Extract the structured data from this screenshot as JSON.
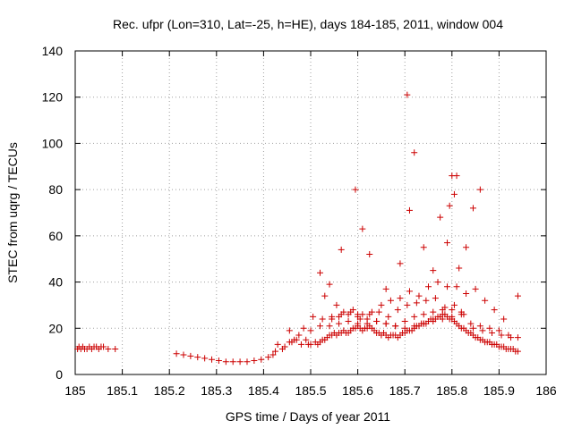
{
  "chart_data": {
    "type": "scatter",
    "title": "Rec. ufpr (Lon=310, Lat=-25, h=HE), days 184-185, 2011, window 004",
    "xlabel": "GPS time / Days of year 2011",
    "ylabel": "STEC from uqrg / TECUs",
    "xlim": [
      185,
      186
    ],
    "ylim": [
      0,
      140
    ],
    "xticks": [
      185,
      185.1,
      185.2,
      185.3,
      185.4,
      185.5,
      185.6,
      185.7,
      185.8,
      185.9,
      186
    ],
    "xtick_labels": [
      "185",
      "185.1",
      "185.2",
      "185.3",
      "185.4",
      "185.5",
      "185.6",
      "185.7",
      "185.8",
      "185.9",
      "186"
    ],
    "yticks": [
      0,
      20,
      40,
      60,
      80,
      100,
      120,
      140
    ],
    "ytick_labels": [
      "0",
      "20",
      "40",
      "60",
      "80",
      "100",
      "120",
      "140"
    ],
    "grid": true,
    "marker": "+",
    "color": "#cc0000",
    "series": [
      {
        "name": "STEC",
        "x": [
          185.005,
          185.008,
          185.012,
          185.016,
          185.02,
          185.025,
          185.03,
          185.035,
          185.04,
          185.045,
          185.05,
          185.055,
          185.06,
          185.07,
          185.085,
          185.215,
          185.23,
          185.245,
          185.26,
          185.275,
          185.29,
          185.305,
          185.32,
          185.335,
          185.35,
          185.365,
          185.38,
          185.395,
          185.41,
          185.42,
          185.425,
          185.43,
          185.44,
          185.445,
          185.455,
          185.46,
          185.47,
          185.48,
          185.49,
          185.495,
          185.5,
          185.51,
          185.515,
          185.52,
          185.525,
          185.53,
          185.535,
          185.54,
          185.545,
          185.55,
          185.555,
          185.56,
          185.565,
          185.57,
          185.575,
          185.58,
          185.585,
          185.59,
          185.595,
          185.6,
          185.605,
          185.61,
          185.615,
          185.62,
          185.625,
          185.63,
          185.635,
          185.64,
          185.645,
          185.65,
          185.655,
          185.66,
          185.665,
          185.67,
          185.675,
          185.68,
          185.685,
          185.69,
          185.695,
          185.7,
          185.705,
          185.71,
          185.715,
          185.72,
          185.725,
          185.73,
          185.735,
          185.74,
          185.745,
          185.75,
          185.755,
          185.76,
          185.765,
          185.77,
          185.775,
          185.78,
          185.785,
          185.79,
          185.795,
          185.8,
          185.805,
          185.81,
          185.815,
          185.82,
          185.825,
          185.83,
          185.835,
          185.84,
          185.845,
          185.85,
          185.855,
          185.86,
          185.865,
          185.87,
          185.875,
          185.88,
          185.885,
          185.89,
          185.895,
          185.9,
          185.905,
          185.91,
          185.915,
          185.92,
          185.925,
          185.93,
          185.935,
          185.94,
          185.455,
          185.475,
          185.5,
          185.52,
          185.54,
          185.56,
          185.58,
          185.6,
          185.62,
          185.64,
          185.66,
          185.68,
          185.7,
          185.72,
          185.74,
          185.76,
          185.78,
          185.8,
          185.82,
          185.84,
          185.86,
          185.88,
          185.9,
          185.92,
          185.94,
          185.465,
          185.485,
          185.505,
          185.525,
          185.545,
          185.565,
          185.585,
          185.605,
          185.625,
          185.645,
          185.665,
          185.685,
          185.705,
          185.725,
          185.745,
          185.765,
          185.785,
          185.805,
          185.825,
          185.845,
          185.865,
          185.885,
          185.905,
          185.925,
          185.53,
          185.545,
          185.555,
          185.57,
          185.59,
          185.61,
          185.63,
          185.65,
          185.67,
          185.69,
          185.71,
          185.73,
          185.75,
          185.77,
          185.79,
          185.81,
          185.83,
          185.85,
          185.87,
          185.89,
          185.91,
          185.52,
          185.54,
          185.565,
          185.595,
          185.6,
          185.61,
          185.625,
          185.66,
          185.69,
          185.705,
          185.71,
          185.72,
          185.74,
          185.76,
          185.775,
          185.79,
          185.795,
          185.8,
          185.805,
          185.81,
          185.815,
          185.83,
          185.845,
          185.86,
          185.94,
          185.56,
          185.58,
          185.6,
          185.62,
          185.64,
          185.66,
          185.68,
          185.7,
          185.72,
          185.74,
          185.76,
          185.78,
          185.8,
          185.82
        ],
        "y": [
          11,
          12,
          11,
          12,
          11,
          11,
          12,
          11,
          12,
          12,
          11,
          12,
          12,
          11,
          11,
          9,
          8.5,
          8,
          7.5,
          7,
          6.5,
          6,
          5.5,
          5.5,
          5.5,
          5.5,
          6,
          6.5,
          7.5,
          8.5,
          10,
          13,
          11,
          12,
          14,
          14,
          15,
          13,
          15,
          13,
          13,
          14,
          13,
          14,
          15,
          15,
          16,
          17,
          17,
          18,
          17,
          18,
          18,
          19,
          18,
          18,
          19,
          20,
          20,
          21,
          20,
          19,
          20,
          20,
          21,
          20,
          19,
          18,
          18,
          17,
          18,
          17,
          16,
          17,
          17,
          17,
          16,
          17,
          18,
          18,
          19,
          19,
          19,
          20,
          21,
          21,
          22,
          22,
          22,
          23,
          24,
          24,
          24,
          25,
          25,
          26,
          26,
          25,
          24,
          24,
          23,
          22,
          21,
          20,
          20,
          19,
          18,
          18,
          17,
          16,
          16,
          15,
          15,
          14,
          14,
          14,
          13,
          13,
          13,
          12,
          12,
          12,
          11,
          11,
          11,
          11,
          10,
          10,
          19,
          17,
          19,
          21,
          21,
          22,
          23,
          22,
          22,
          23,
          22,
          21,
          23,
          25,
          26,
          27,
          28,
          28,
          27,
          22,
          21,
          20,
          19,
          17,
          16,
          15,
          20,
          25,
          24,
          25,
          26,
          27,
          24,
          26,
          27,
          25,
          28,
          30,
          31,
          32,
          33,
          29,
          30,
          26,
          20,
          19,
          18,
          17,
          16,
          34,
          24,
          30,
          27,
          28,
          26,
          27,
          30,
          32,
          33,
          36,
          34,
          38,
          40,
          38,
          38,
          35,
          37,
          32,
          28,
          24,
          44,
          39,
          54,
          80,
          26,
          63,
          52,
          37,
          48,
          121,
          71,
          96,
          55,
          45,
          68,
          57,
          73,
          86,
          78,
          86,
          46,
          55,
          72,
          80,
          34,
          25,
          26,
          25,
          24,
          23,
          22,
          21,
          20,
          21,
          22,
          23,
          24,
          25,
          26
        ]
      }
    ]
  }
}
